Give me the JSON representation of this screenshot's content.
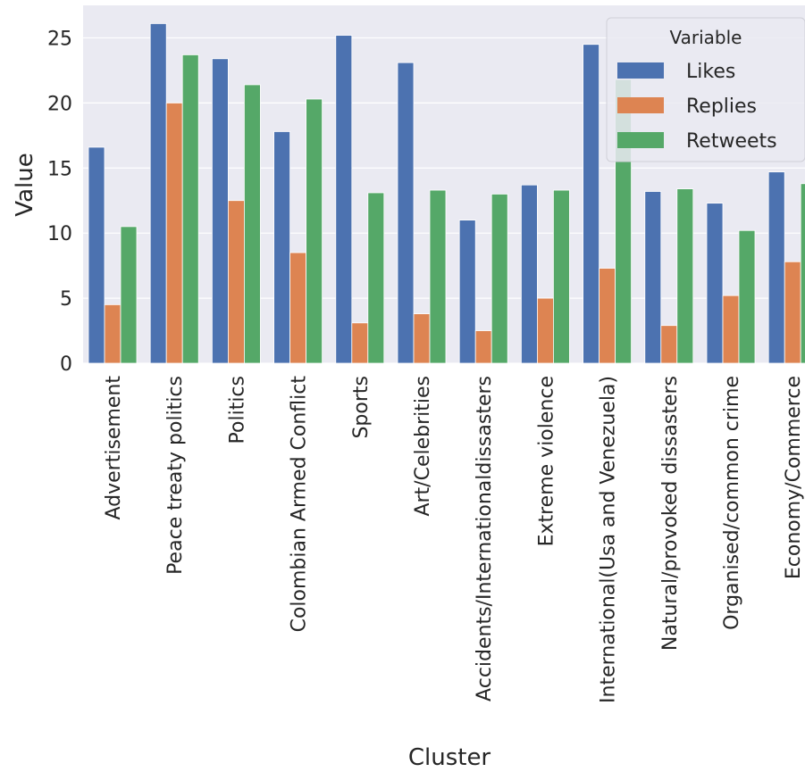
{
  "chart_data": {
    "type": "bar",
    "xlabel": "Cluster",
    "ylabel": "Value",
    "ylim": [
      0,
      27.5
    ],
    "yticks": [
      0,
      5,
      10,
      15,
      20,
      25
    ],
    "grid": true,
    "legend": {
      "title": "Variable",
      "placement": "top-right"
    },
    "categories": [
      "Advertisement",
      "Peace treaty politics",
      "Politics",
      "Colombian Armed Conflict",
      "Sports",
      "Art/Celebrities",
      "Accidents/Internationaldissasters",
      "Extreme violence",
      "International(Usa and Venezuela)",
      "Natural/provoked dissasters",
      "Organised/common crime",
      "Economy/Commerce"
    ],
    "series": [
      {
        "name": "Likes",
        "color": "#4c72b0",
        "values": [
          16.6,
          26.1,
          23.4,
          17.8,
          25.2,
          23.1,
          11.0,
          13.7,
          24.5,
          13.2,
          12.3,
          14.7
        ]
      },
      {
        "name": "Replies",
        "color": "#dd8452",
        "values": [
          4.5,
          20.0,
          12.5,
          8.5,
          3.1,
          3.8,
          2.5,
          5.0,
          7.3,
          2.9,
          5.2,
          7.8
        ]
      },
      {
        "name": "Retweets",
        "color": "#55a868",
        "values": [
          10.5,
          23.7,
          21.4,
          20.3,
          13.1,
          13.3,
          13.0,
          13.3,
          21.8,
          13.4,
          10.2,
          13.8
        ]
      }
    ],
    "background_color": "#eaeaf2",
    "grid_color": "#ffffff"
  }
}
